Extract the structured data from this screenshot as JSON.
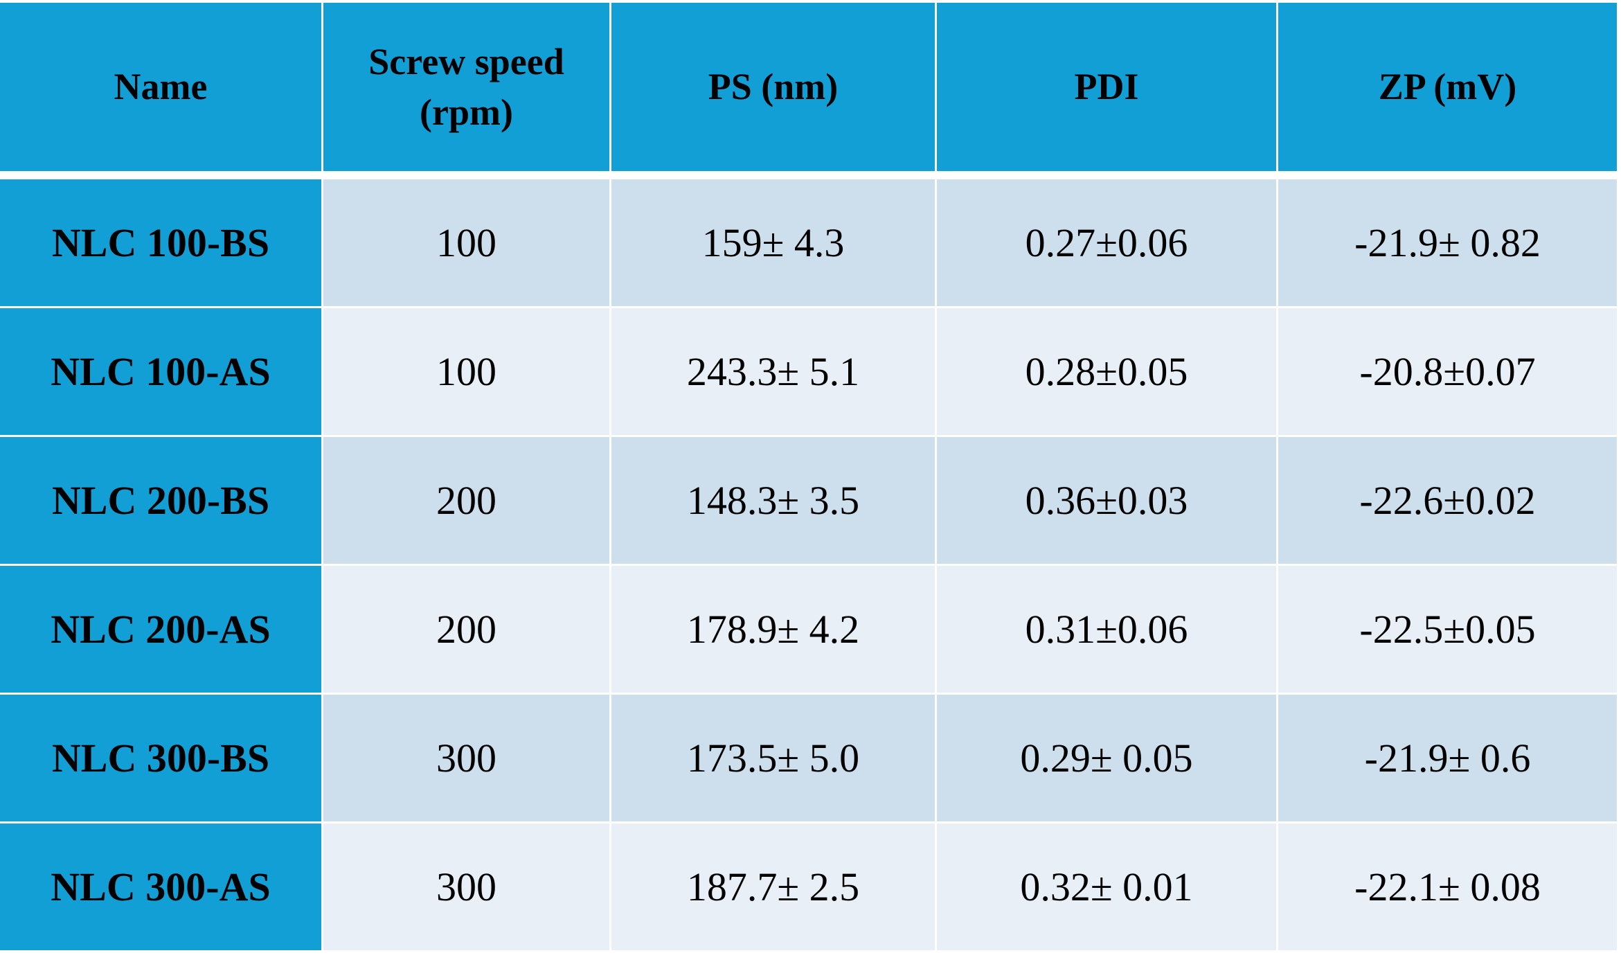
{
  "table": {
    "header": [
      "Name",
      "Screw speed (rpm)",
      "PS (nm)",
      "PDI",
      "ZP (mV)"
    ],
    "rows": [
      [
        "NLC 100-BS",
        "100",
        "159± 4.3",
        "0.27±0.06",
        "-21.9± 0.82"
      ],
      [
        "NLC 100-AS",
        "100",
        "243.3± 5.1",
        "0.28±0.05",
        "-20.8±0.07"
      ],
      [
        "NLC 200-BS",
        "200",
        "148.3± 3.5",
        "0.36±0.03",
        "-22.6±0.02"
      ],
      [
        "NLC 200-AS",
        "200",
        "178.9± 4.2",
        "0.31±0.06",
        "-22.5±0.05"
      ],
      [
        "NLC 300-BS",
        "300",
        "173.5± 5.0",
        "0.29± 0.05",
        "-21.9± 0.6"
      ],
      [
        "NLC 300-AS",
        "300",
        "187.7± 2.5",
        "0.32± 0.01",
        "-22.1± 0.08"
      ]
    ]
  }
}
